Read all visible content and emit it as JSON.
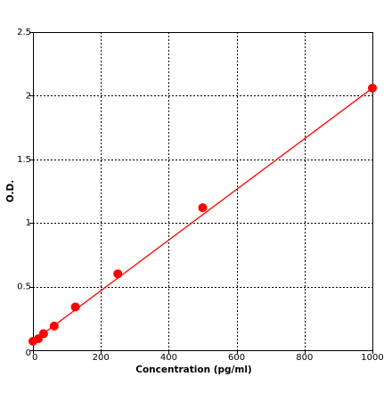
{
  "chart_data": {
    "type": "scatter",
    "title": "",
    "xlabel": "Concentration (pg/ml)",
    "ylabel": "O.D.",
    "xlim": [
      0,
      1000
    ],
    "ylim": [
      0,
      2.5
    ],
    "xticks": [
      0,
      200,
      400,
      600,
      800,
      1000
    ],
    "yticks": [
      0,
      0.5,
      1,
      1.5,
      2,
      2.5
    ],
    "xtick_labels": [
      "0",
      "200",
      "400",
      "600",
      "800",
      "1000"
    ],
    "ytick_labels": [
      "0",
      "0.5",
      "1",
      "1.5",
      "2",
      "2.5"
    ],
    "grid": true,
    "series": [
      {
        "type": "scatter",
        "color": "#ff0000",
        "x": [
          0,
          15.6,
          31.2,
          62.5,
          125,
          250,
          500,
          1000
        ],
        "y": [
          0.07,
          0.09,
          0.13,
          0.19,
          0.34,
          0.6,
          1.12,
          2.06
        ]
      },
      {
        "type": "line",
        "color": "#ff0000",
        "x": [
          0,
          1000
        ],
        "y": [
          0.07,
          2.06
        ]
      }
    ]
  }
}
